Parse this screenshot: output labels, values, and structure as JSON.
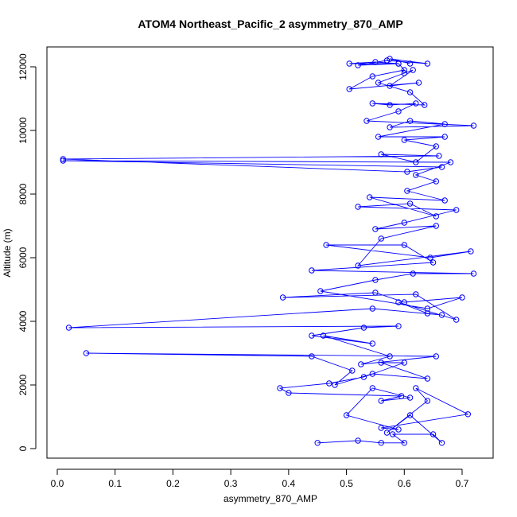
{
  "chart_data": {
    "type": "line",
    "title": "ATOM4 Northeast_Pacific_2 asymmetry_870_AMP",
    "xlabel": "asymmetry_870_AMP",
    "ylabel": "Altitude (m)",
    "xlim": [
      0.0,
      0.75
    ],
    "ylim": [
      0,
      12500
    ],
    "x_ticks": [
      0.0,
      0.1,
      0.2,
      0.3,
      0.4,
      0.5,
      0.6,
      0.7
    ],
    "x_tick_labels": [
      "0.0",
      "0.1",
      "0.2",
      "0.3",
      "0.4",
      "0.5",
      "0.6",
      "0.7"
    ],
    "y_ticks": [
      0,
      2000,
      4000,
      6000,
      8000,
      10000,
      12000
    ],
    "y_tick_labels": [
      "0",
      "2000",
      "4000",
      "6000",
      "8000",
      "10000",
      "12000"
    ],
    "color": "#0000ff",
    "marker": "open-circle",
    "grid": false,
    "legend": "none",
    "series": [
      {
        "x": [
          0.45,
          0.52,
          0.56,
          0.6,
          0.58,
          0.65,
          0.665,
          0.61,
          0.57,
          0.64,
          0.62,
          0.71,
          0.56,
          0.59,
          0.5,
          0.545,
          0.61,
          0.56,
          0.595,
          0.4,
          0.385,
          0.47,
          0.53,
          0.6,
          0.56,
          0.64,
          0.545,
          0.48,
          0.51,
          0.44,
          0.05,
          0.655,
          0.525,
          0.575,
          0.46,
          0.545,
          0.44,
          0.53,
          0.59,
          0.02,
          0.545,
          0.665,
          0.64,
          0.59,
          0.69,
          0.62,
          0.39,
          0.55,
          0.6,
          0.7,
          0.64,
          0.455,
          0.55,
          0.615,
          0.72,
          0.44,
          0.65,
          0.6,
          0.465,
          0.645,
          0.715,
          0.52,
          0.56,
          0.655,
          0.55,
          0.6,
          0.69,
          0.52,
          0.61,
          0.655,
          0.54,
          0.67,
          0.605,
          0.655,
          0.62,
          0.68,
          0.01,
          0.665,
          0.605,
          0.01,
          0.66,
          0.56,
          0.62,
          0.655,
          0.6,
          0.67,
          0.555,
          0.67,
          0.61,
          0.575,
          0.72,
          0.535,
          0.59,
          0.62,
          0.575,
          0.545,
          0.635,
          0.61,
          0.555,
          0.6,
          0.615,
          0.575,
          0.625,
          0.505,
          0.545,
          0.6,
          0.59,
          0.505,
          0.55,
          0.59,
          0.52,
          0.57,
          0.64,
          0.575,
          0.61
        ],
        "y": [
          180,
          250,
          180,
          180,
          450,
          450,
          180,
          1050,
          500,
          1500,
          1900,
          1080,
          650,
          600,
          1050,
          1900,
          1600,
          1500,
          1650,
          1750,
          1900,
          2050,
          2250,
          2700,
          2700,
          2200,
          2350,
          2000,
          2450,
          2900,
          3000,
          2900,
          2650,
          2900,
          3550,
          3300,
          3550,
          3800,
          3850,
          3800,
          4400,
          4200,
          4250,
          4600,
          4050,
          4850,
          4750,
          4900,
          4600,
          4750,
          4400,
          4950,
          5300,
          5500,
          5500,
          5600,
          5850,
          6400,
          6400,
          6000,
          6200,
          5750,
          6600,
          7000,
          6900,
          7100,
          7500,
          7600,
          7700,
          7300,
          7900,
          7800,
          8100,
          8400,
          8600,
          9000,
          9050,
          8850,
          8700,
          9100,
          9200,
          9250,
          9000,
          9500,
          9700,
          9800,
          9800,
          10200,
          10300,
          10100,
          10150,
          10300,
          10600,
          10850,
          10800,
          10850,
          10800,
          11200,
          11500,
          11800,
          11900,
          11400,
          11500,
          11300,
          11700,
          11900,
          12100,
          12100,
          12150,
          12100,
          12050,
          12200,
          12100,
          12250,
          12100
        ]
      }
    ]
  }
}
